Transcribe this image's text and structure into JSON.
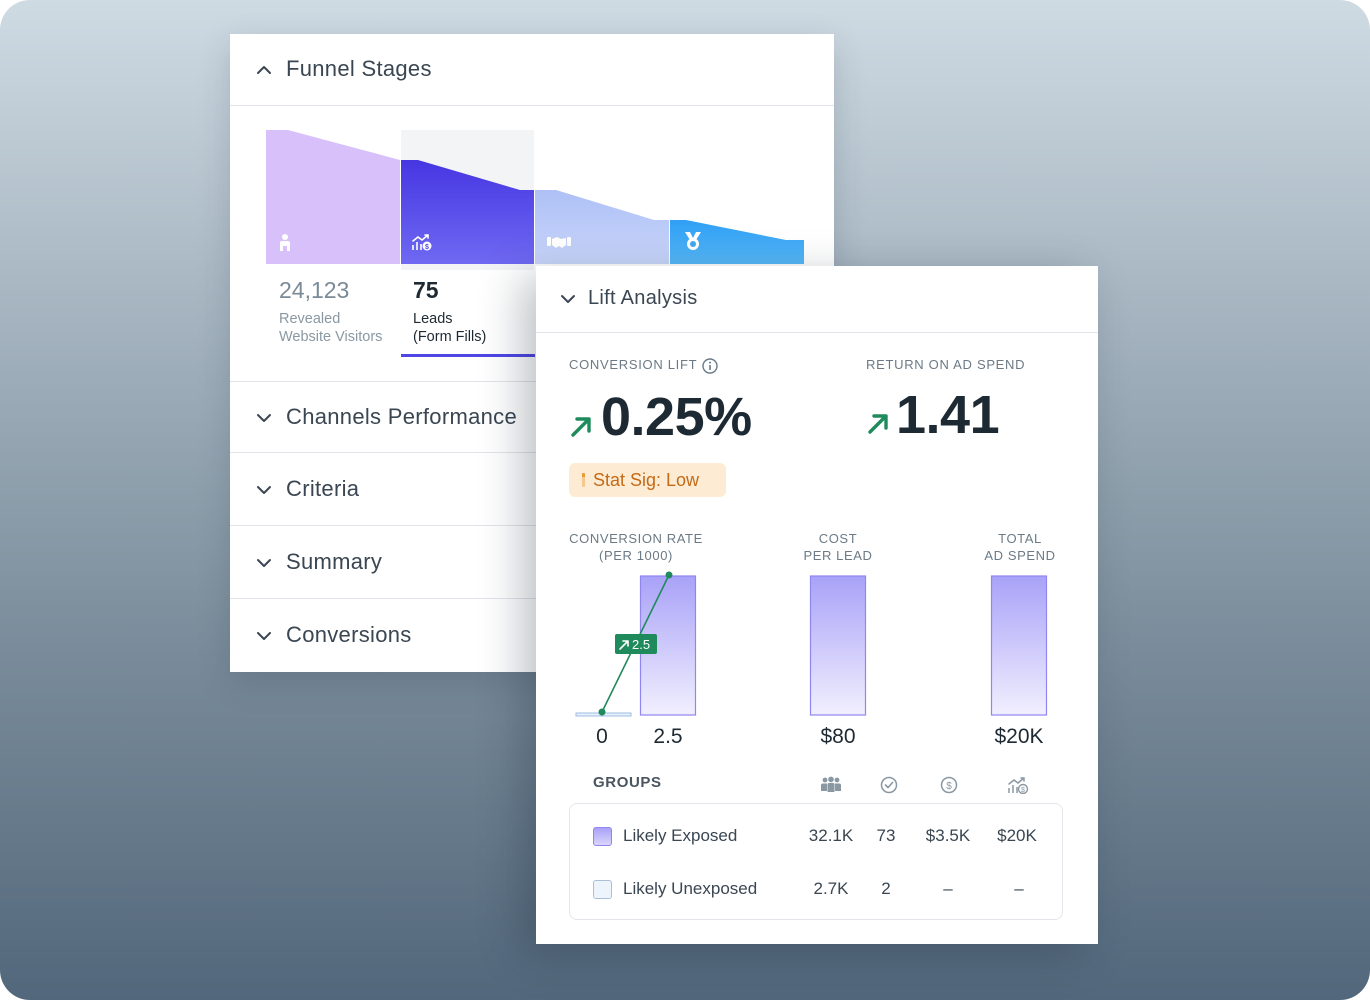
{
  "funnel_panel": {
    "title": "Funnel Stages",
    "stages": [
      {
        "value": "24,123",
        "label_line1": "Revealed",
        "label_line2": "Website Visitors",
        "icon": "person-icon",
        "color": "#d8c1fb"
      },
      {
        "value": "75",
        "label_line1": "Leads",
        "label_line2": "(Form Fills)",
        "icon": "chart-dollar-icon",
        "color": "#5546e8"
      },
      {
        "value": "",
        "label_line1": "",
        "label_line2": "",
        "icon": "handshake-icon",
        "color": "#b9caf7"
      },
      {
        "value": "",
        "label_line1": "",
        "label_line2": "",
        "icon": "medal-icon",
        "color": "#3fa9f5"
      }
    ],
    "sections": [
      "Channels Performance",
      "Criteria",
      "Summary",
      "Conversions"
    ]
  },
  "lift_panel": {
    "title": "Lift Analysis",
    "conversion_lift": {
      "label": "CONVERSION LIFT",
      "value": "0.25%",
      "trend": "up"
    },
    "roas": {
      "label": "RETURN ON AD SPEND",
      "value": "1.41",
      "trend": "up"
    },
    "stat_sig": "Stat Sig: Low",
    "metrics": [
      {
        "line1": "CONVERSION RATE",
        "line2": "(PER 1000)"
      },
      {
        "line1": "COST",
        "line2": "PER LEAD"
      },
      {
        "line1": "TOTAL",
        "line2": "AD SPEND"
      }
    ],
    "conversion_rate": {
      "unexposed": "0",
      "exposed": "2.5",
      "lift_tag": "2.5"
    },
    "cost_per_lead": "$80",
    "total_ad_spend": "$20K",
    "groups": {
      "header": "GROUPS",
      "column_icons": [
        "people-icon",
        "check-circle-icon",
        "dollar-circle-icon",
        "chart-dollar-icon"
      ],
      "rows": [
        {
          "name": "Likely Exposed",
          "values": [
            "32.1K",
            "73",
            "$3.5K",
            "$20K"
          ]
        },
        {
          "name": "Likely Unexposed",
          "values": [
            "2.7K",
            "2",
            "–",
            "–"
          ]
        }
      ]
    }
  },
  "colors": {
    "accent": "#4f46e5",
    "positive": "#1f8a5b",
    "exposed_bar": "#a9a2f8",
    "warning_bg": "#fdecd3",
    "warning_text": "#c46a16"
  }
}
